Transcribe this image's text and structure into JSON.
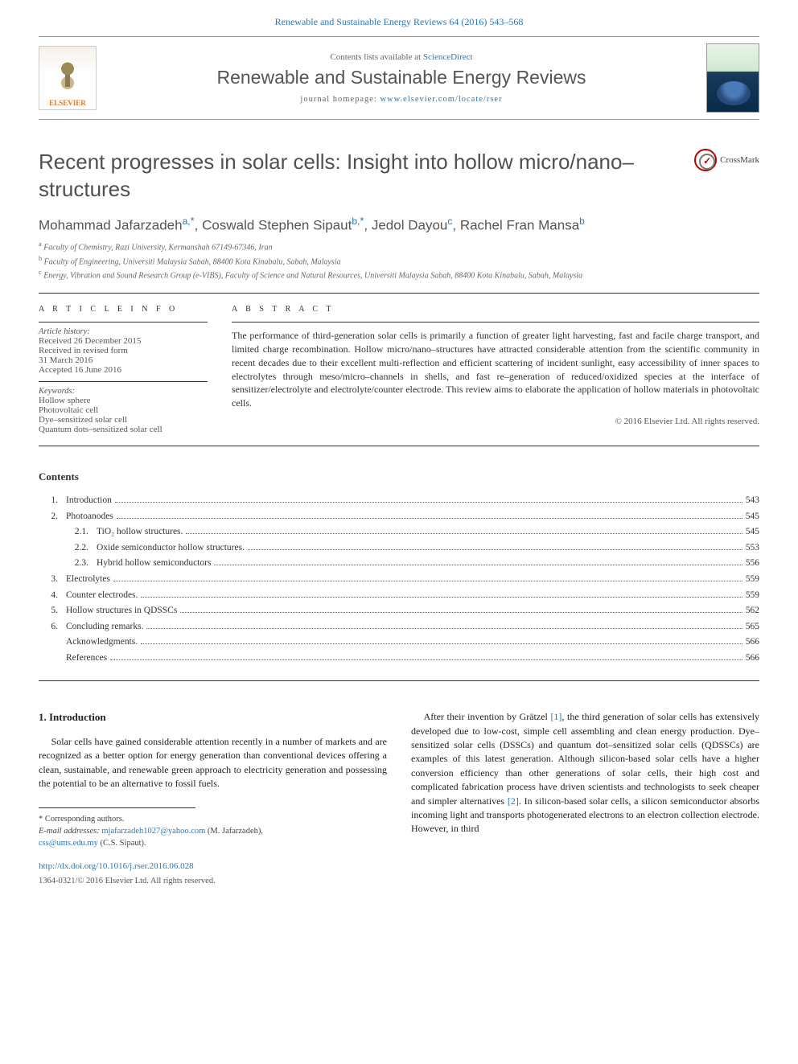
{
  "journal_ref_text": "Renewable and Sustainable Energy Reviews 64 (2016) 543–568",
  "header": {
    "contents_avail_prefix": "Contents lists available at ",
    "contents_avail_link": "ScienceDirect",
    "journal_title": "Renewable and Sustainable Energy Reviews",
    "homepage_prefix": "journal homepage: ",
    "homepage_link": "www.elsevier.com/locate/rser",
    "elsevier_label": "ELSEVIER"
  },
  "crossmark_label": "CrossMark",
  "article_title": "Recent progresses in solar cells: Insight into hollow micro/nano–structures",
  "authors_html": {
    "a1_name": "Mohammad Jafarzadeh",
    "a1_aff": "a,",
    "a1_star": "*",
    "a2_name": "Coswald Stephen Sipaut",
    "a2_aff": "b,",
    "a2_star": "*",
    "a3_name": "Jedol Dayou",
    "a3_aff": "c",
    "a4_name": "Rachel Fran Mansa",
    "a4_aff": "b"
  },
  "affiliations": {
    "a": "Faculty of Chemistry, Razi University, Kermanshah 67149-67346, Iran",
    "b": "Faculty of Engineering, Universiti Malaysia Sabah, 88400 Kota Kinabalu, Sabah, Malaysia",
    "c": "Energy, Vibration and Sound Research Group (e-VIBS), Faculty of Science and Natural Resources, Universiti Malaysia Sabah, 88400 Kota Kinabalu, Sabah, Malaysia"
  },
  "article_info": {
    "heading": "A R T I C L E  I N F O",
    "history_label": "Article history:",
    "received": "Received 26 December 2015",
    "revised1": "Received in revised form",
    "revised2": "31 March 2016",
    "accepted": "Accepted 16 June 2016",
    "keywords_label": "Keywords:",
    "kw1": "Hollow sphere",
    "kw2": "Photovoltaic cell",
    "kw3": "Dye–sensitized solar cell",
    "kw4": "Quantum dots–sensitized solar cell"
  },
  "abstract": {
    "heading": "A B S T R A C T",
    "text": "The performance of third-generation solar cells is primarily a function of greater light harvesting, fast and facile charge transport, and limited charge recombination. Hollow micro/nano–structures have attracted considerable attention from the scientific community in recent decades due to their excellent multi-reflection and efficient scattering of incident sunlight, easy accessibility of inner spaces to electrolytes through meso/micro–channels in shells, and fast re–generation of reduced/oxidized species at the interface of sensitizer/electrolyte and electrolyte/counter electrode. This review aims to elaborate the application of hollow materials in photovoltaic cells.",
    "copyright": "© 2016 Elsevier Ltd. All rights reserved."
  },
  "contents_heading": "Contents",
  "toc": [
    {
      "num": "1.",
      "label": "Introduction",
      "page": "543",
      "lvl": 0
    },
    {
      "num": "2.",
      "label": "Photoanodes",
      "page": "545",
      "lvl": 0
    },
    {
      "num": "2.1.",
      "label": "TiO₂ hollow structures.",
      "page": "545",
      "lvl": 1
    },
    {
      "num": "2.2.",
      "label": "Oxide semiconductor hollow structures.",
      "page": "553",
      "lvl": 1
    },
    {
      "num": "2.3.",
      "label": "Hybrid hollow semiconductors",
      "page": "556",
      "lvl": 1
    },
    {
      "num": "3.",
      "label": "Electrolytes",
      "page": "559",
      "lvl": 0
    },
    {
      "num": "4.",
      "label": "Counter electrodes.",
      "page": "559",
      "lvl": 0
    },
    {
      "num": "5.",
      "label": "Hollow structures in QDSSCs",
      "page": "562",
      "lvl": 0
    },
    {
      "num": "6.",
      "label": "Concluding remarks.",
      "page": "565",
      "lvl": 0
    },
    {
      "num": "",
      "label": "Acknowledgments.",
      "page": "566",
      "lvl": 0
    },
    {
      "num": "",
      "label": "References",
      "page": "566",
      "lvl": 0
    }
  ],
  "intro_heading": "1. Introduction",
  "intro_p1": "Solar cells have gained considerable attention recently in a number of markets and are recognized as a better option for energy generation than conventional devices offering a clean, sustainable, and renewable green approach to electricity generation and possessing the potential to be an alternative to fossil fuels.",
  "col2_text_1": "After their invention by Grätzel ",
  "col2_ref1": "[1]",
  "col2_text_2": ", the third generation of solar cells has extensively developed due to low-cost, simple cell assembling and clean energy production. Dye–sensitized solar cells (DSSCs) and quantum dot–sensitized solar cells (QDSSCs) are examples of this latest generation. Although silicon-based solar cells have a higher conversion efficiency than other generations of solar cells, their high cost and complicated fabrication process have driven scientists and technologists to seek cheaper and simpler alternatives ",
  "col2_ref2": "[2]",
  "col2_text_3": ". In silicon-based solar cells, a silicon semiconductor absorbs incoming light and transports photogenerated electrons to an electron collection electrode. However, in third",
  "footnotes": {
    "corr": "* Corresponding authors.",
    "email_label": "E-mail addresses: ",
    "email1": "mjafarzadeh1027@yahoo.com",
    "email1_sfx": " (M. Jafarzadeh),",
    "email2": "css@ums.edu.my",
    "email2_sfx": " (C.S. Sipaut)."
  },
  "doi": "http://dx.doi.org/10.1016/j.rser.2016.06.028",
  "copyright_bottom": "1364-0321/© 2016 Elsevier Ltd. All rights reserved.",
  "colors": {
    "link": "#2878b8",
    "text": "#333333",
    "muted": "#666666",
    "elsevier_orange": "#e87722"
  }
}
